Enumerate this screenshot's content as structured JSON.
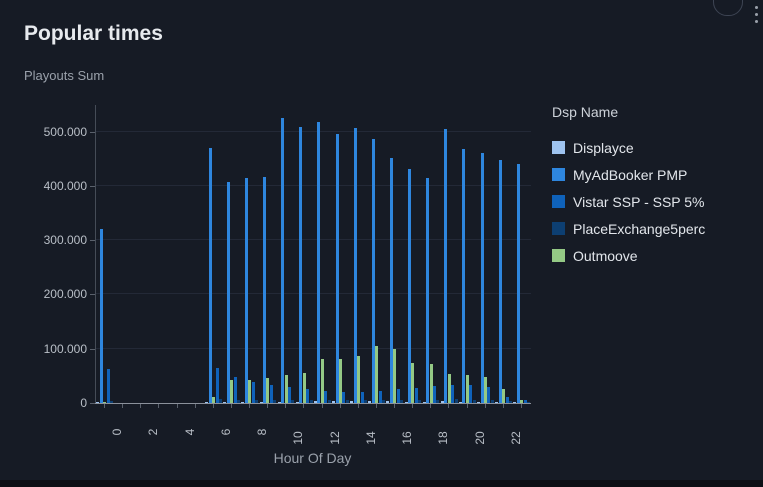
{
  "card": {
    "title": "Popular times",
    "y_axis_title": "Playouts Sum",
    "x_axis_title": "Hour Of Day"
  },
  "legend": {
    "title": "Dsp Name"
  },
  "colors": {
    "card_bg": "#161b25",
    "grid": "#232937",
    "axis_line": "#8b919b"
  },
  "chart_data": {
    "type": "bar",
    "title": "Popular times",
    "xlabel": "Hour Of Day",
    "ylabel": "Playouts Sum",
    "x": [
      0,
      1,
      2,
      3,
      4,
      5,
      6,
      7,
      8,
      9,
      10,
      11,
      12,
      13,
      14,
      15,
      16,
      17,
      18,
      19,
      20,
      21,
      22,
      23
    ],
    "x_labeled_ticks": [
      0,
      2,
      4,
      6,
      8,
      10,
      12,
      14,
      16,
      18,
      20,
      22
    ],
    "y_ticks": [
      0,
      100000,
      200000,
      300000,
      400000,
      500000
    ],
    "y_tick_labels": [
      "0",
      "100.000",
      "200.000",
      "300.000",
      "400.000",
      "500.000"
    ],
    "ylim": [
      0,
      549000
    ],
    "grid": "horizontal",
    "legend_position": "right",
    "series": [
      {
        "name": "Displayce",
        "color": "#9ec3ef",
        "values": [
          1000,
          0,
          0,
          0,
          0,
          0,
          2000,
          2000,
          2000,
          2000,
          2000,
          2000,
          3000,
          3000,
          3000,
          3000,
          3000,
          2000,
          2000,
          3000,
          2000,
          2000,
          1000,
          1000
        ]
      },
      {
        "name": "MyAdBooker PMP",
        "color": "#2e86de",
        "values": [
          320000,
          0,
          0,
          0,
          0,
          0,
          470000,
          408000,
          414000,
          416000,
          526000,
          509000,
          517000,
          496000,
          506000,
          487000,
          451000,
          432000,
          414000,
          505000,
          468000,
          460000,
          448000,
          441000
        ]
      },
      {
        "name": "Vistar SSP - SSP 5%",
        "color": "#0f62ba",
        "values": [
          62000,
          0,
          0,
          0,
          0,
          0,
          64000,
          48000,
          39000,
          34000,
          30000,
          26000,
          23000,
          21000,
          20000,
          22000,
          26000,
          28000,
          32000,
          34000,
          33000,
          30000,
          12000,
          5000
        ]
      },
      {
        "name": "PlaceExchange5perc",
        "color": "#0d3f72",
        "values": [
          4000,
          0,
          0,
          0,
          0,
          0,
          8000,
          6000,
          6000,
          5000,
          5000,
          5000,
          6000,
          6000,
          6000,
          6000,
          6000,
          6000,
          6000,
          8000,
          6000,
          5000,
          4000,
          2000
        ]
      },
      {
        "name": "Outmoove",
        "color": "#94c985",
        "values": [
          2000,
          0,
          0,
          0,
          0,
          0,
          12000,
          42000,
          43000,
          47000,
          52000,
          56000,
          81000,
          82000,
          86000,
          105000,
          100000,
          74000,
          71000,
          53000,
          52000,
          48000,
          25000,
          6000
        ]
      }
    ]
  }
}
